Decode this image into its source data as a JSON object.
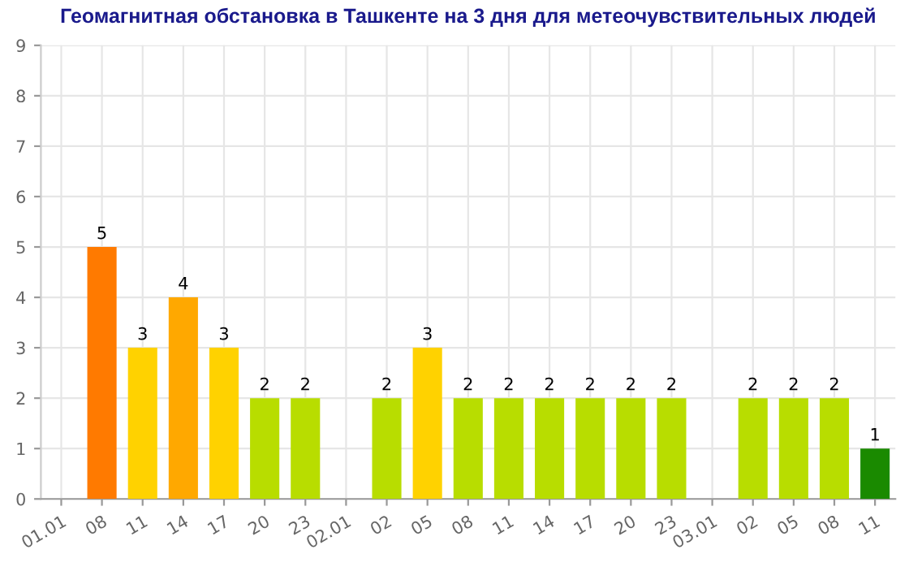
{
  "chart_data": {
    "type": "bar",
    "title": "Геомагнитная обстановка в Ташкенте на 3 дня для метеочувствительных людей",
    "categories": [
      "01.01",
      "08",
      "11",
      "14",
      "17",
      "20",
      "23",
      "02.01",
      "02",
      "05",
      "08",
      "11",
      "14",
      "17",
      "20",
      "23",
      "03.01",
      "02",
      "05",
      "08",
      "11"
    ],
    "values": [
      null,
      5,
      3,
      4,
      3,
      2,
      2,
      null,
      2,
      3,
      2,
      2,
      2,
      2,
      2,
      2,
      null,
      2,
      2,
      2,
      1
    ],
    "colors": [
      "#7fbf00",
      "#ff7a00",
      "#ffd200",
      "#ffa800",
      "#ffd200",
      "#b8dd00",
      "#b8dd00",
      "#7fbf00",
      "#b8dd00",
      "#ffd200",
      "#b8dd00",
      "#b8dd00",
      "#b8dd00",
      "#b8dd00",
      "#b8dd00",
      "#b8dd00",
      "#7fbf00",
      "#b8dd00",
      "#b8dd00",
      "#b8dd00",
      "#1a8a00"
    ],
    "ylim": [
      0,
      9
    ],
    "yticks": [
      0,
      1,
      2,
      3,
      4,
      5,
      6,
      7,
      8,
      9
    ],
    "grid": true,
    "data_labels": true
  }
}
